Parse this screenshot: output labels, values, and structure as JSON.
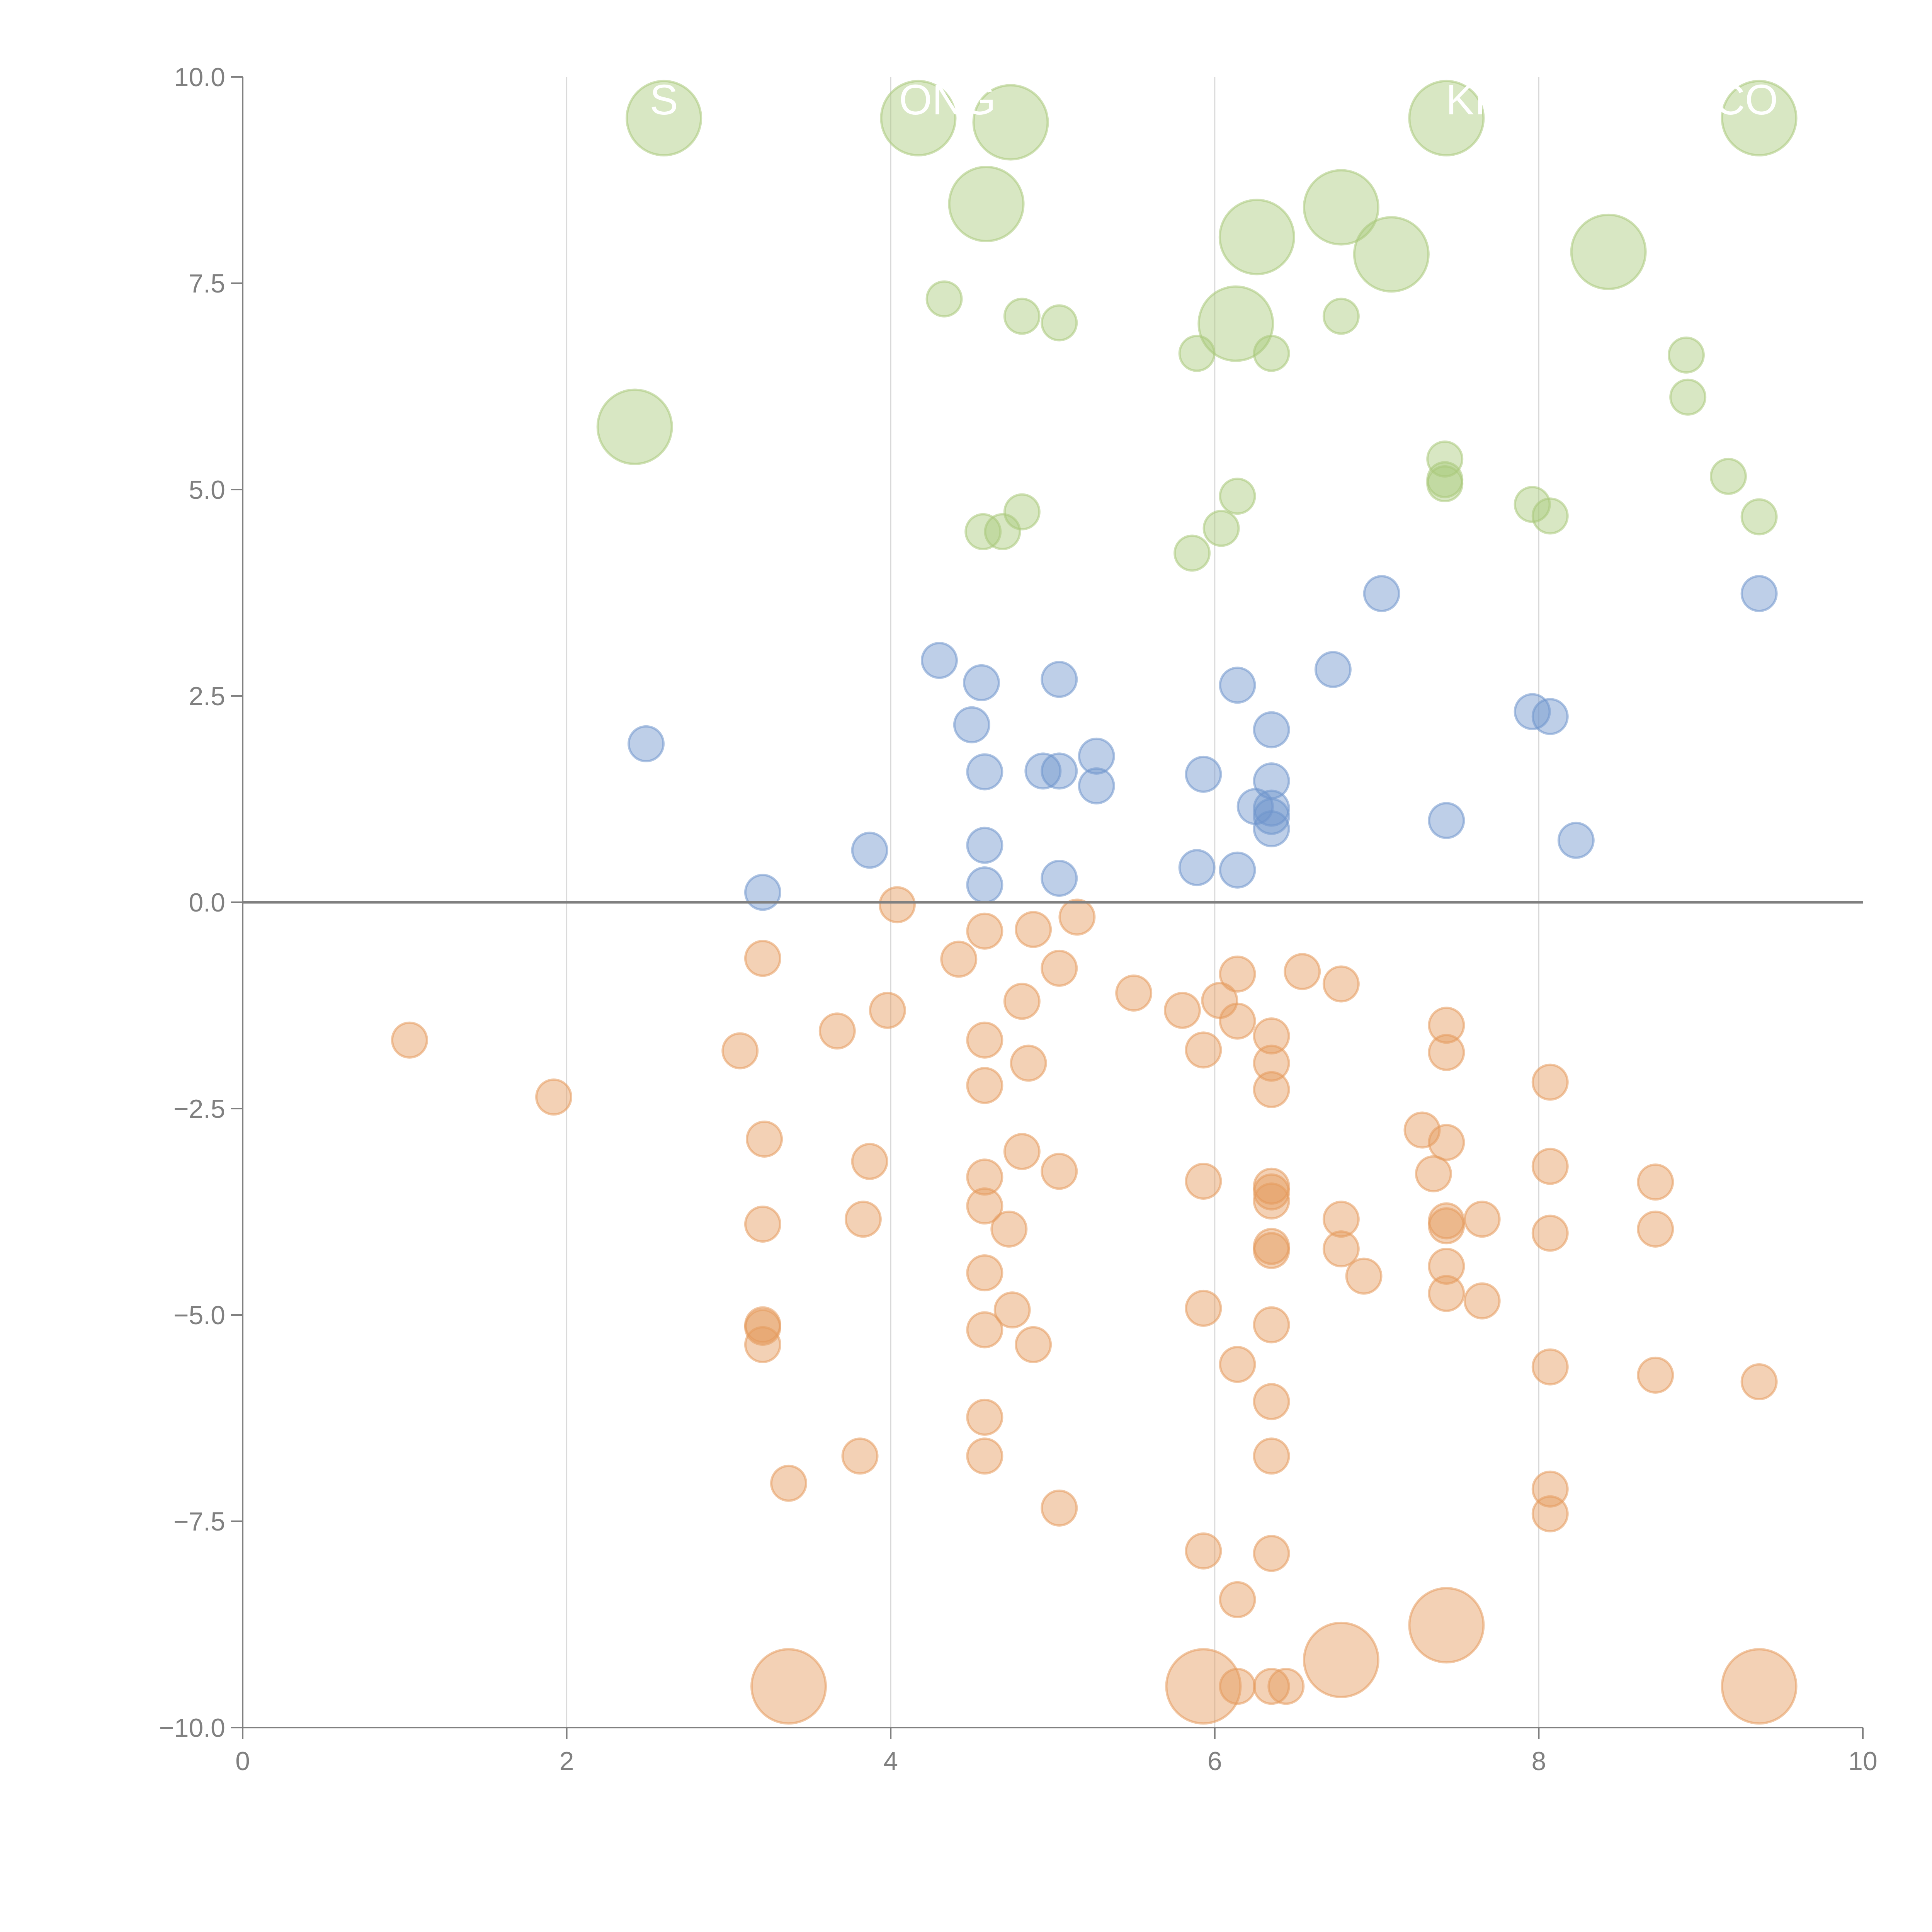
{
  "chart_data": {
    "type": "scatter",
    "title": "",
    "xlabel": "",
    "ylabel": "",
    "xlim": [
      0,
      10
    ],
    "ylim": [
      -10,
      10
    ],
    "grid": "vertical at x ticks",
    "reference_line_y": 0,
    "xticks": [
      "0",
      "2",
      "4",
      "6",
      "8",
      "10"
    ],
    "xtick_values": [
      0,
      2,
      4,
      6,
      8,
      10
    ],
    "yticks": [
      "10.0",
      "7.5",
      "5.0",
      "2.5",
      "0.0",
      "−2.5",
      "−5.0",
      "−7.5",
      "−10.0"
    ],
    "ytick_values": [
      10,
      7.5,
      5,
      2.5,
      0,
      -2.5,
      -5,
      -7.5,
      -10
    ],
    "point_format": "[x, y, size]",
    "annotations": [
      {
        "text": "S",
        "x": 2.6,
        "y": 9.5
      },
      {
        "text": "ONG",
        "x": 4.35,
        "y": 9.5
      },
      {
        "text": "KI",
        "x": 7.55,
        "y": 9.5
      },
      {
        "text": "CO",
        "x": 9.28,
        "y": 9.5
      }
    ],
    "series": [
      {
        "name": "green",
        "color": "#a9c97a",
        "points": [
          [
            2.6,
            9.5,
            4
          ],
          [
            4.17,
            9.5,
            4
          ],
          [
            4.74,
            9.45,
            4
          ],
          [
            4.59,
            8.46,
            4
          ],
          [
            7.43,
            9.5,
            4
          ],
          [
            9.36,
            9.5,
            4
          ],
          [
            6.26,
            8.06,
            4
          ],
          [
            6.78,
            8.42,
            4
          ],
          [
            7.09,
            7.85,
            4
          ],
          [
            8.43,
            7.88,
            4
          ],
          [
            6.13,
            7.01,
            4
          ],
          [
            2.42,
            5.76,
            4
          ],
          [
            4.33,
            7.31,
            1
          ],
          [
            4.81,
            7.1,
            1
          ],
          [
            5.04,
            7.02,
            1
          ],
          [
            5.89,
            6.65,
            1
          ],
          [
            6.35,
            6.65,
            1
          ],
          [
            6.78,
            7.1,
            1
          ],
          [
            8.91,
            6.63,
            1
          ],
          [
            8.92,
            6.12,
            1
          ],
          [
            7.42,
            5.37,
            1
          ],
          [
            7.42,
            5.12,
            1
          ],
          [
            7.42,
            5.07,
            1
          ],
          [
            6.14,
            4.92,
            1
          ],
          [
            6.04,
            4.53,
            1
          ],
          [
            4.57,
            4.49,
            1
          ],
          [
            4.69,
            4.49,
            1
          ],
          [
            4.81,
            4.73,
            1
          ],
          [
            5.86,
            4.23,
            1
          ],
          [
            7.96,
            4.82,
            1
          ],
          [
            8.07,
            4.68,
            1
          ],
          [
            9.17,
            5.16,
            1
          ],
          [
            9.36,
            4.67,
            1
          ]
        ]
      },
      {
        "name": "blue",
        "color": "#6f95cc",
        "points": [
          [
            2.49,
            1.92,
            1
          ],
          [
            3.21,
            0.12,
            1
          ],
          [
            3.87,
            0.63,
            1
          ],
          [
            4.3,
            2.93,
            1
          ],
          [
            4.56,
            2.66,
            1
          ],
          [
            4.5,
            2.15,
            1
          ],
          [
            4.58,
            1.58,
            1
          ],
          [
            4.58,
            0.69,
            1
          ],
          [
            4.58,
            0.21,
            1
          ],
          [
            5.04,
            2.7,
            1
          ],
          [
            4.94,
            1.59,
            1
          ],
          [
            5.04,
            1.59,
            1
          ],
          [
            5.27,
            1.77,
            1
          ],
          [
            5.27,
            1.41,
            1
          ],
          [
            5.04,
            0.29,
            1
          ],
          [
            5.93,
            1.55,
            1
          ],
          [
            5.89,
            0.42,
            1
          ],
          [
            6.14,
            2.63,
            1
          ],
          [
            6.14,
            0.39,
            1
          ],
          [
            6.35,
            2.09,
            1
          ],
          [
            6.35,
            1.47,
            1
          ],
          [
            6.25,
            1.16,
            1
          ],
          [
            6.35,
            1.14,
            1
          ],
          [
            6.35,
            0.89,
            1
          ],
          [
            6.35,
            1.04,
            1
          ],
          [
            6.73,
            2.82,
            1
          ],
          [
            7.03,
            3.74,
            1
          ],
          [
            7.43,
            0.99,
            1
          ],
          [
            7.96,
            2.31,
            1
          ],
          [
            8.07,
            2.25,
            1
          ],
          [
            8.23,
            0.75,
            1
          ],
          [
            9.36,
            3.74,
            1
          ]
        ]
      },
      {
        "name": "orange",
        "color": "#e59a5c",
        "points": [
          [
            1.03,
            -1.67,
            1
          ],
          [
            1.92,
            -2.36,
            1
          ],
          [
            3.07,
            -1.8,
            1
          ],
          [
            3.21,
            -0.68,
            1
          ],
          [
            3.22,
            -2.87,
            1
          ],
          [
            3.21,
            -3.9,
            1
          ],
          [
            3.21,
            -5.12,
            1
          ],
          [
            3.21,
            -5.15,
            1
          ],
          [
            3.21,
            -5.36,
            1
          ],
          [
            3.37,
            -7.04,
            1
          ],
          [
            3.67,
            -1.56,
            1
          ],
          [
            3.87,
            -3.14,
            1
          ],
          [
            3.83,
            -3.84,
            1
          ],
          [
            3.81,
            -6.71,
            1
          ],
          [
            3.98,
            -1.31,
            1
          ],
          [
            4.04,
            -0.03,
            1
          ],
          [
            4.42,
            -0.69,
            1
          ],
          [
            4.58,
            -0.35,
            1
          ],
          [
            4.58,
            -1.67,
            1
          ],
          [
            4.58,
            -2.22,
            1
          ],
          [
            4.58,
            -3.33,
            1
          ],
          [
            4.58,
            -3.68,
            1
          ],
          [
            4.58,
            -4.49,
            1
          ],
          [
            4.58,
            -5.18,
            1
          ],
          [
            4.58,
            -6.24,
            1
          ],
          [
            4.58,
            -6.71,
            1
          ],
          [
            4.73,
            -3.96,
            1
          ],
          [
            4.75,
            -4.94,
            1
          ],
          [
            4.81,
            -1.2,
            1
          ],
          [
            4.81,
            -3.02,
            1
          ],
          [
            4.85,
            -1.95,
            1
          ],
          [
            4.88,
            -0.33,
            1
          ],
          [
            4.88,
            -5.36,
            1
          ],
          [
            5.04,
            -0.8,
            1
          ],
          [
            5.04,
            -3.26,
            1
          ],
          [
            5.04,
            -7.34,
            1
          ],
          [
            5.15,
            -0.18,
            1
          ],
          [
            5.5,
            -1.1,
            1
          ],
          [
            5.8,
            -1.31,
            1
          ],
          [
            5.93,
            -1.79,
            1
          ],
          [
            5.93,
            -3.38,
            1
          ],
          [
            5.93,
            -4.92,
            1
          ],
          [
            5.93,
            -7.86,
            1
          ],
          [
            6.03,
            -1.19,
            1
          ],
          [
            6.14,
            -0.87,
            1
          ],
          [
            6.14,
            -1.44,
            1
          ],
          [
            6.14,
            -5.6,
            1
          ],
          [
            6.14,
            -8.45,
            1
          ],
          [
            6.35,
            -1.62,
            1
          ],
          [
            6.35,
            -1.95,
            1
          ],
          [
            6.35,
            -2.27,
            1
          ],
          [
            6.35,
            -3.44,
            1
          ],
          [
            6.35,
            -3.51,
            1
          ],
          [
            6.35,
            -3.62,
            1
          ],
          [
            6.35,
            -4.17,
            1
          ],
          [
            6.35,
            -4.22,
            1
          ],
          [
            6.35,
            -5.12,
            1
          ],
          [
            6.35,
            -6.05,
            1
          ],
          [
            6.35,
            -6.71,
            1
          ],
          [
            6.35,
            -7.89,
            1
          ],
          [
            6.54,
            -0.84,
            1
          ],
          [
            6.78,
            -0.99,
            1
          ],
          [
            6.78,
            -3.84,
            1
          ],
          [
            6.78,
            -4.2,
            1
          ],
          [
            6.92,
            -4.53,
            1
          ],
          [
            7.28,
            -2.76,
            1
          ],
          [
            7.35,
            -3.29,
            1
          ],
          [
            7.43,
            -1.49,
            1
          ],
          [
            7.43,
            -1.82,
            1
          ],
          [
            7.43,
            -2.91,
            1
          ],
          [
            7.43,
            -3.86,
            1
          ],
          [
            7.43,
            -3.92,
            1
          ],
          [
            7.43,
            -4.41,
            1
          ],
          [
            7.43,
            -4.74,
            1
          ],
          [
            7.65,
            -3.84,
            1
          ],
          [
            7.65,
            -4.83,
            1
          ],
          [
            8.07,
            -2.18,
            1
          ],
          [
            8.07,
            -3.2,
            1
          ],
          [
            8.07,
            -4.01,
            1
          ],
          [
            8.07,
            -5.63,
            1
          ],
          [
            8.07,
            -7.11,
            1
          ],
          [
            8.07,
            -7.41,
            1
          ],
          [
            8.72,
            -3.39,
            1
          ],
          [
            8.72,
            -3.96,
            1
          ],
          [
            8.72,
            -5.73,
            1
          ],
          [
            9.36,
            -5.81,
            1
          ],
          [
            6.14,
            -9.5,
            1
          ],
          [
            6.35,
            -9.5,
            1
          ],
          [
            6.44,
            -9.5,
            1
          ],
          [
            3.37,
            -9.5,
            4
          ],
          [
            5.93,
            -9.5,
            4
          ],
          [
            6.78,
            -9.18,
            4
          ],
          [
            7.43,
            -8.76,
            4
          ],
          [
            9.36,
            -9.5,
            4
          ]
        ]
      }
    ]
  }
}
